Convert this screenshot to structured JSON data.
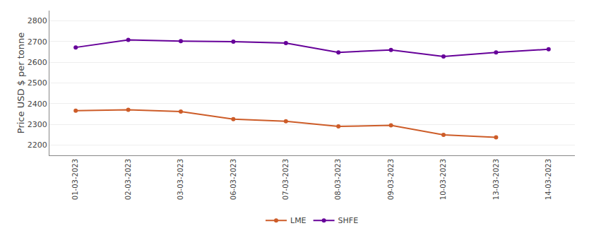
{
  "chart_data": {
    "type": "line",
    "ylabel": "Price USD $ per tonne",
    "categories": [
      "01-03-2023",
      "02-03-2023",
      "03-03-2023",
      "06-03-2023",
      "07-03-2023",
      "08-03-2023",
      "09-03-2023",
      "10-03-2023",
      "13-03-2023",
      "14-03-2023"
    ],
    "series": [
      {
        "name": "LME",
        "color": "#CD5C28",
        "values": [
          2366,
          2370,
          2362,
          2325,
          2315,
          2290,
          2295,
          2249,
          2237,
          null
        ]
      },
      {
        "name": "SHFE",
        "color": "#660099",
        "values": [
          2672,
          2708,
          2702,
          2700,
          2693,
          2648,
          2660,
          2628,
          2648,
          2663
        ]
      }
    ],
    "ylim": [
      2150,
      2850
    ],
    "yticks": [
      2200,
      2300,
      2400,
      2500,
      2600,
      2700,
      2800
    ],
    "grid": true,
    "legend": "bottom",
    "marker": "circle"
  }
}
